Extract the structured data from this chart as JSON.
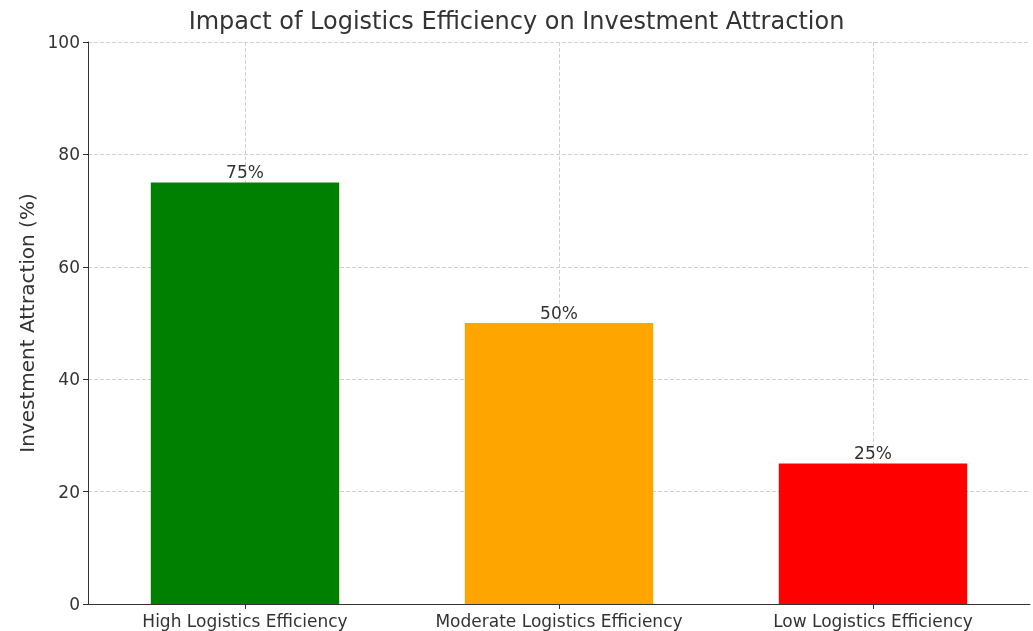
{
  "chart_data": {
    "type": "bar",
    "title": "Impact of Logistics Efficiency on Investment Attraction",
    "ylabel": "Investment Attraction (%)",
    "categories": [
      "High Logistics Efficiency",
      "Moderate Logistics Efficiency",
      "Low Logistics Efficiency"
    ],
    "values": [
      75,
      50,
      25
    ],
    "colors": [
      "#008000",
      "#ffa500",
      "#ff0000"
    ],
    "value_labels": [
      "75%",
      "50%",
      "25%"
    ],
    "ylim": [
      0,
      100
    ],
    "yticks": [
      0,
      20,
      40,
      60,
      80,
      100
    ],
    "grid": true
  }
}
